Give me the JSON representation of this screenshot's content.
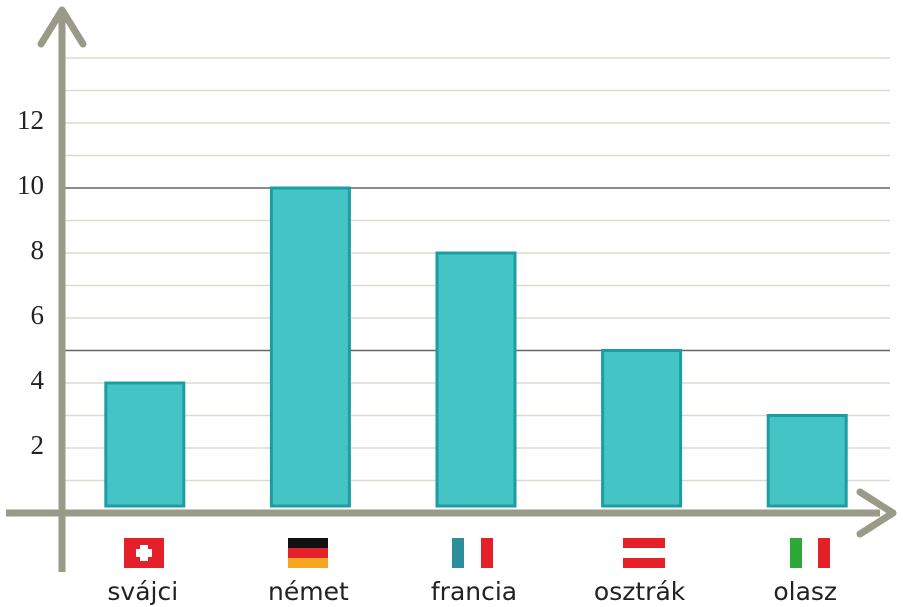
{
  "chart_data": {
    "type": "bar",
    "categories": [
      "svájci",
      "német",
      "francia",
      "osztrák",
      "olasz"
    ],
    "values": [
      4,
      10,
      8,
      5,
      3
    ],
    "color": "#45c4c6",
    "ylim": [
      0,
      14
    ],
    "yticks": [
      2,
      4,
      6,
      8,
      10,
      12
    ],
    "grid_lines": [
      1,
      2,
      3,
      4,
      5,
      6,
      7,
      8,
      9,
      10,
      11,
      12,
      13,
      14
    ],
    "major_grid_lines": [
      5,
      10
    ]
  }
}
